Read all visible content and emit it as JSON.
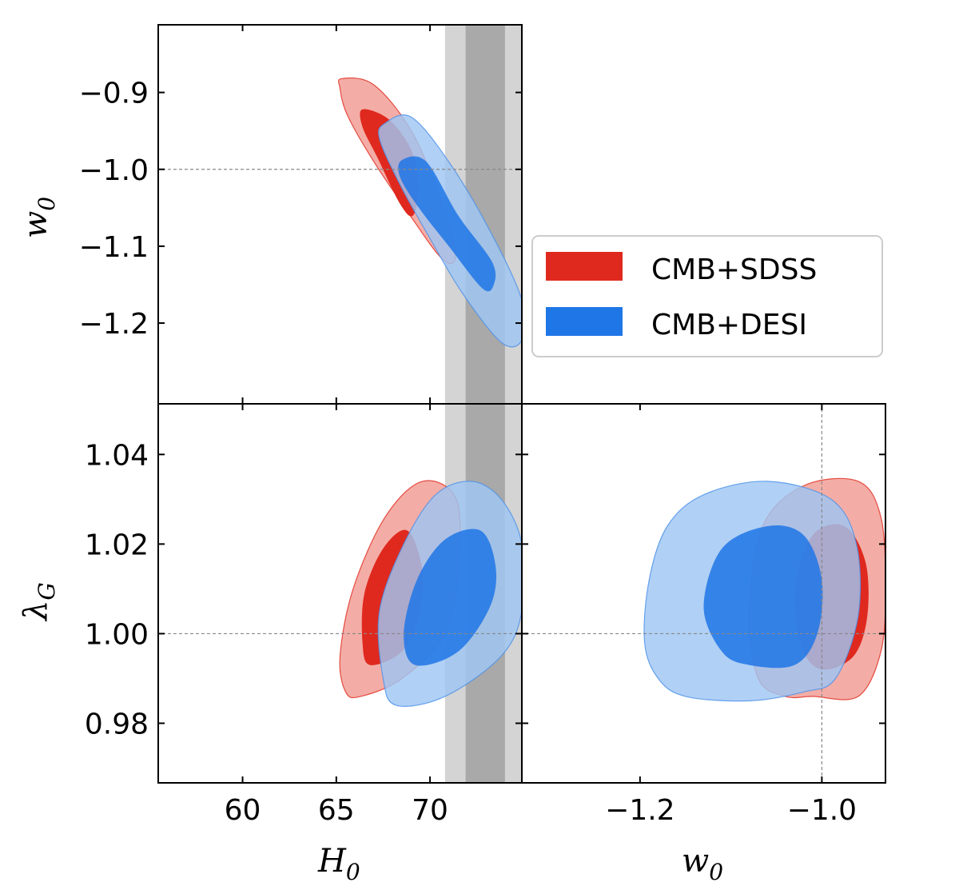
{
  "chart_data": {
    "type": "contour",
    "title": "",
    "colors": {
      "sdss_outer": "#f2a9a1",
      "sdss_inner": "#e0291e",
      "desi_outer": "#9fc6f3",
      "desi_inner": "#1f76e6",
      "band_light": "#d4d4d4",
      "band_dark": "#a9a9a9",
      "ref_line": "#888888"
    },
    "legend": {
      "position": "right-middle",
      "entries": [
        "CMB+SDSS",
        "CMB+DESI"
      ]
    },
    "axes": {
      "H0": {
        "label_main": "H",
        "label_sub": "0",
        "range": [
          55.5,
          74.9
        ],
        "ticks": [
          60,
          65,
          70
        ],
        "tick_labels": [
          "60",
          "65",
          "70"
        ]
      },
      "w0_x": {
        "label_main": "w",
        "label_sub": "0",
        "range": [
          -1.33,
          -0.93
        ],
        "ticks": [
          -1.2,
          -1.0
        ],
        "tick_labels": [
          "−1.2",
          "−1.0"
        ]
      },
      "w0_y": {
        "label_main": "w",
        "label_sub": "0",
        "range": [
          -1.305,
          -0.812
        ],
        "ticks": [
          -0.9,
          -1.0,
          -1.1,
          -1.2
        ],
        "tick_labels": [
          "−0.9",
          "−1.0",
          "−1.1",
          "−1.2"
        ]
      },
      "lambdaG": {
        "label_main": "λ",
        "label_sub": "G",
        "range": [
          0.9667,
          1.0513
        ],
        "ticks": [
          1.04,
          1.02,
          1.0,
          0.98
        ],
        "tick_labels": [
          "1.04",
          "1.02",
          "1.00",
          "0.98"
        ]
      }
    },
    "reference_values": {
      "w0": -1.0,
      "lambdaG": 1.0
    },
    "H0_band": {
      "inner": [
        71.9,
        74.0
      ],
      "outer": [
        70.8,
        74.9
      ]
    },
    "series": [
      {
        "name": "CMB+SDSS",
        "panels": {
          "H0_w0": {
            "outer": [
              [
                65.3,
                -0.882
              ],
              [
                67.0,
                -0.89
              ],
              [
                69.0,
                -0.95
              ],
              [
                70.6,
                -1.04
              ],
              [
                71.3,
                -1.1
              ],
              [
                71.2,
                -1.122
              ],
              [
                70.4,
                -1.11
              ],
              [
                68.8,
                -1.055
              ],
              [
                67.0,
                -0.99
              ],
              [
                65.6,
                -0.93
              ],
              [
                65.2,
                -0.895
              ]
            ],
            "inner": [
              [
                66.4,
                -0.922
              ],
              [
                67.8,
                -0.935
              ],
              [
                69.0,
                -0.975
              ],
              [
                69.4,
                -1.02
              ],
              [
                69.1,
                -1.06
              ],
              [
                68.4,
                -1.045
              ],
              [
                67.2,
                -0.985
              ],
              [
                66.4,
                -0.945
              ]
            ]
          },
          "H0_lambdaG": {
            "outer": [
              [
                66.3,
                0.986
              ],
              [
                68.5,
                0.99
              ],
              [
                70.8,
                1.0
              ],
              [
                71.5,
                1.015
              ],
              [
                71.4,
                1.03
              ],
              [
                69.6,
                1.034
              ],
              [
                67.6,
                1.026
              ],
              [
                65.9,
                1.01
              ],
              [
                65.2,
                0.995
              ],
              [
                65.5,
                0.987
              ]
            ],
            "inner": [
              [
                66.8,
                0.993
              ],
              [
                68.5,
                0.996
              ],
              [
                69.4,
                1.004
              ],
              [
                69.6,
                1.014
              ],
              [
                68.8,
                1.023
              ],
              [
                67.5,
                1.019
              ],
              [
                66.5,
                1.009
              ],
              [
                66.4,
                0.998
              ]
            ]
          },
          "w0_lambdaG": {
            "outer": [
              [
                -1.01,
                0.986
              ],
              [
                -0.96,
                0.986
              ],
              [
                -0.935,
                0.996
              ],
              [
                -0.93,
                1.01
              ],
              [
                -0.935,
                1.026
              ],
              [
                -0.96,
                1.034
              ],
              [
                -1.02,
                1.033
              ],
              [
                -1.065,
                1.024
              ],
              [
                -1.08,
                1.005
              ],
              [
                -1.07,
                0.99
              ],
              [
                -1.04,
                0.986
              ]
            ],
            "inner": [
              [
                -1.0,
                0.992
              ],
              [
                -0.965,
                0.995
              ],
              [
                -0.95,
                1.004
              ],
              [
                -0.952,
                1.016
              ],
              [
                -0.975,
                1.024
              ],
              [
                -1.01,
                1.022
              ],
              [
                -1.03,
                1.01
              ],
              [
                -1.022,
                0.997
              ]
            ]
          }
        }
      },
      {
        "name": "CMB+DESI",
        "panels": {
          "H0_w0": {
            "outer": [
              [
                67.6,
                -0.94
              ],
              [
                69.0,
                -0.932
              ],
              [
                71.0,
                -0.99
              ],
              [
                73.2,
                -1.08
              ],
              [
                74.9,
                -1.17
              ],
              [
                74.9,
                -1.222
              ],
              [
                73.8,
                -1.225
              ],
              [
                71.7,
                -1.16
              ],
              [
                70.0,
                -1.09
              ],
              [
                68.4,
                -1.02
              ],
              [
                67.3,
                -0.96
              ]
            ],
            "inner": [
              [
                68.5,
                -0.988
              ],
              [
                69.8,
                -0.99
              ],
              [
                71.5,
                -1.06
              ],
              [
                73.3,
                -1.12
              ],
              [
                73.4,
                -1.15
              ],
              [
                72.8,
                -1.155
              ],
              [
                71.0,
                -1.1
              ],
              [
                69.4,
                -1.05
              ],
              [
                68.4,
                -1.01
              ]
            ]
          },
          "H0_lambdaG": {
            "outer": [
              [
                68.2,
                0.984
              ],
              [
                70.8,
                0.986
              ],
              [
                73.8,
                0.995
              ],
              [
                74.9,
                1.005
              ],
              [
                74.9,
                1.02
              ],
              [
                73.8,
                1.03
              ],
              [
                72.2,
                1.034
              ],
              [
                70.3,
                1.031
              ],
              [
                68.6,
                1.02
              ],
              [
                67.3,
                1.005
              ],
              [
                67.5,
                0.99
              ]
            ],
            "inner": [
              [
                69.2,
                0.993
              ],
              [
                71.5,
                0.996
              ],
              [
                73.2,
                1.006
              ],
              [
                73.5,
                1.015
              ],
              [
                72.7,
                1.023
              ],
              [
                70.8,
                1.021
              ],
              [
                69.3,
                1.012
              ],
              [
                68.6,
                1.0
              ]
            ]
          },
          "w0_lambdaG": {
            "outer": [
              [
                -1.15,
                0.986
              ],
              [
                -1.08,
                0.985
              ],
              [
                -1.02,
                0.987
              ],
              [
                -0.985,
                0.99
              ],
              [
                -0.96,
                1.004
              ],
              [
                -0.962,
                1.02
              ],
              [
                -0.99,
                1.03
              ],
              [
                -1.06,
                1.034
              ],
              [
                -1.13,
                1.031
              ],
              [
                -1.17,
                1.024
              ],
              [
                -1.19,
                1.012
              ],
              [
                -1.195,
                0.998
              ],
              [
                -1.18,
                0.99
              ]
            ],
            "inner": [
              [
                -1.08,
                0.993
              ],
              [
                -1.03,
                0.993
              ],
              [
                -1.005,
                1.0
              ],
              [
                -1.0,
                1.012
              ],
              [
                -1.02,
                1.022
              ],
              [
                -1.06,
                1.024
              ],
              [
                -1.11,
                1.019
              ],
              [
                -1.13,
                1.006
              ],
              [
                -1.11,
                0.996
              ]
            ]
          }
        }
      }
    ]
  }
}
